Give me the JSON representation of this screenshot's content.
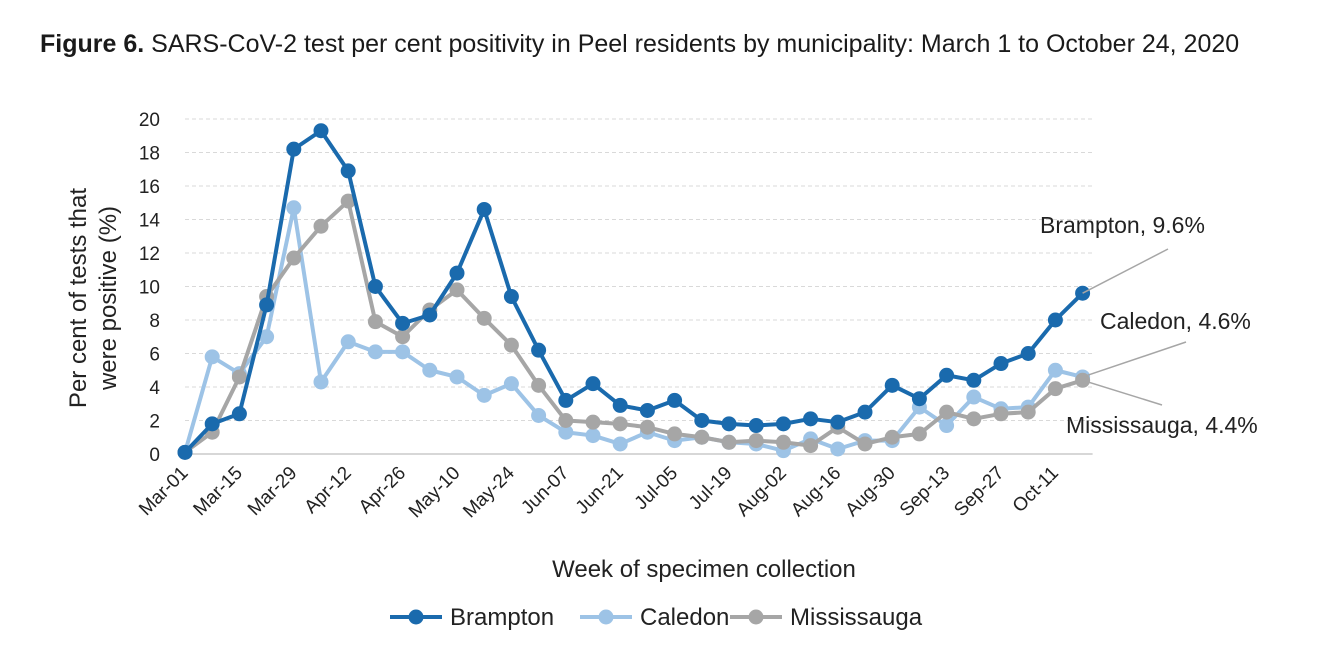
{
  "figure": {
    "label": "Figure 6.",
    "title": "SARS-CoV-2 test per cent positivity in Peel residents by municipality: March 1 to October 24, 2020"
  },
  "chart_data": {
    "type": "line",
    "title": "SARS-CoV-2 test per cent positivity in Peel residents by municipality: March 1 to October 24, 2020",
    "xlabel": "Week of specimen collection",
    "ylabel": "Per cent of tests that were positive (%)",
    "ylim": [
      0,
      20
    ],
    "yticks": [
      0,
      2,
      4,
      6,
      8,
      10,
      12,
      14,
      16,
      18,
      20
    ],
    "grid": true,
    "legend_position": "bottom",
    "x": [
      "Mar-01",
      "Mar-08",
      "Mar-15",
      "Mar-22",
      "Mar-29",
      "Apr-05",
      "Apr-12",
      "Apr-19",
      "Apr-26",
      "May-03",
      "May-10",
      "May-17",
      "May-24",
      "May-31",
      "Jun-07",
      "Jun-14",
      "Jun-21",
      "Jun-28",
      "Jul-05",
      "Jul-12",
      "Jul-19",
      "Jul-26",
      "Aug-02",
      "Aug-09",
      "Aug-16",
      "Aug-23",
      "Aug-30",
      "Sep-06",
      "Sep-13",
      "Sep-20",
      "Sep-27",
      "Oct-04",
      "Oct-11",
      "Oct-18"
    ],
    "xtick_labels": [
      "Mar-01",
      "Mar-15",
      "Mar-29",
      "Apr-12",
      "Apr-26",
      "May-10",
      "May-24",
      "Jun-07",
      "Jun-21",
      "Jul-05",
      "Jul-19",
      "Aug-02",
      "Aug-16",
      "Aug-30",
      "Sep-13",
      "Sep-27",
      "Oct-11"
    ],
    "series": [
      {
        "name": "Brampton",
        "color": "#1a6aad",
        "values": [
          0.1,
          1.8,
          2.4,
          8.9,
          18.2,
          19.3,
          16.9,
          10.0,
          7.8,
          8.3,
          10.8,
          14.6,
          9.4,
          6.2,
          3.2,
          4.2,
          2.9,
          2.6,
          3.2,
          2.0,
          1.8,
          1.7,
          1.8,
          2.1,
          1.9,
          2.5,
          4.1,
          3.3,
          4.7,
          4.4,
          5.4,
          6.0,
          8.0,
          9.6
        ]
      },
      {
        "name": "Caledon",
        "color": "#9dc3e6",
        "values": [
          0.1,
          5.8,
          4.8,
          7.0,
          14.7,
          4.3,
          6.7,
          6.1,
          6.1,
          5.0,
          4.6,
          3.5,
          4.2,
          2.3,
          1.3,
          1.1,
          0.6,
          1.3,
          0.8,
          1.0,
          0.7,
          0.6,
          0.2,
          0.9,
          0.3,
          0.8,
          0.8,
          2.8,
          1.7,
          3.4,
          2.7,
          2.8,
          5.0,
          4.6
        ]
      },
      {
        "name": "Mississauga",
        "color": "#a6a6a6",
        "values": [
          0.1,
          1.3,
          4.6,
          9.4,
          11.7,
          13.6,
          15.1,
          7.9,
          7.0,
          8.6,
          9.8,
          8.1,
          6.5,
          4.1,
          2.0,
          1.9,
          1.8,
          1.6,
          1.2,
          1.0,
          0.7,
          0.8,
          0.7,
          0.5,
          1.6,
          0.6,
          1.0,
          1.2,
          2.5,
          2.1,
          2.4,
          2.5,
          3.9,
          4.4
        ]
      }
    ],
    "annotations": [
      {
        "series": "Brampton",
        "text": "Brampton, 9.6%"
      },
      {
        "series": "Caledon",
        "text": "Caledon, 4.6%"
      },
      {
        "series": "Mississauga",
        "text": "Mississauga, 4.4%"
      }
    ]
  }
}
